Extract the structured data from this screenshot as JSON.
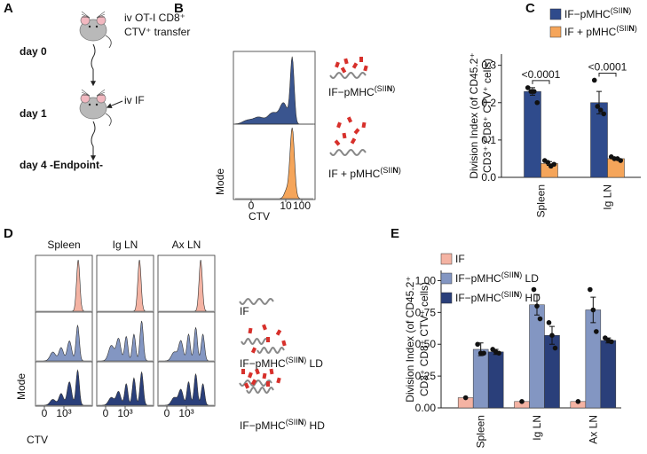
{
  "panel_labels": [
    "A",
    "B",
    "C",
    "D",
    "E"
  ],
  "panel_a": {
    "steps": [
      {
        "day": "day 0",
        "note": [
          "iv OT-I CD8⁺",
          "CTV⁺ transfer"
        ]
      },
      {
        "day": "day 1",
        "note": [
          "iv IF"
        ]
      },
      {
        "day": "day 4 -Endpoint-"
      }
    ]
  },
  "panel_b": {
    "y_label": "Mode",
    "x_label": "CTV",
    "x_ticks": [
      "0",
      "10",
      "100"
    ],
    "rows": [
      "IF−pMHC(SIIN)",
      "IF + pMHC(SIIN)"
    ]
  },
  "panel_d": {
    "columns": [
      "Spleen",
      "Ig LN",
      "Ax LN"
    ],
    "y_label": "Mode",
    "x_label": "CTV",
    "x_ticks": [
      "0",
      "10³"
    ],
    "rows": [
      "IF",
      "IF−pMHC(SIIN) LD",
      "IF−pMHC(SIIN) HD"
    ]
  },
  "chart_data": [
    {
      "type": "bar",
      "y_label": [
        "Division Index (of CD45.2⁺",
        "CD3⁺ CD8⁺ CTV⁺ cells)"
      ],
      "categories": [
        "Spleen",
        "Ig LN"
      ],
      "series": [
        {
          "name": "IF−pMHC(SIIN)",
          "color": "#2f4b8c",
          "values": [
            0.23,
            0.2
          ],
          "errors": [
            0.01,
            0.03
          ],
          "points": [
            [
              0.24,
              0.23,
              0.23,
              0.2
            ],
            [
              0.26,
              0.19,
              0.18,
              0.17
            ]
          ]
        },
        {
          "name": "IF + pMHC(SIIN)",
          "color": "#f5a55a",
          "values": [
            0.037,
            0.05
          ],
          "errors": [
            0.005,
            0.003
          ],
          "points": [
            [
              0.045,
              0.04,
              0.03,
              0.035
            ],
            [
              0.055,
              0.05,
              0.05,
              0.045
            ]
          ]
        }
      ],
      "annotations": [
        "<0.0001",
        "<0.0001"
      ],
      "ylim": [
        0,
        0.33
      ],
      "yticks": [
        {
          "value": 0,
          "label": "0.0"
        },
        0.1,
        0.2,
        0.3
      ]
    },
    {
      "type": "bar",
      "y_label": [
        "Division Index (of CD45.2⁺",
        "CD3⁺ CD8⁺ CTV⁺ cells)"
      ],
      "categories": [
        "Spleen",
        "Ig LN",
        "Ax LN"
      ],
      "series": [
        {
          "name": "IF",
          "color": "#f4b3a3",
          "values": [
            0.08,
            0.05,
            0.05
          ],
          "points": [
            [
              0.08
            ],
            [
              0.05
            ],
            [
              0.05
            ]
          ]
        },
        {
          "name": "IF−pMHC(SIIN) LD",
          "color": "#8396c2",
          "values": [
            0.46,
            0.81,
            0.77
          ],
          "errors": [
            0.05,
            0.08,
            0.1
          ],
          "points": [
            [
              0.5,
              0.43,
              0.43
            ],
            [
              0.93,
              0.8,
              0.7
            ],
            [
              0.93,
              0.77,
              0.6
            ]
          ]
        },
        {
          "name": "IF−pMHC(SIIN) HD",
          "color": "#2a3f7a",
          "values": [
            0.44,
            0.57,
            0.53
          ],
          "errors": [
            0.02,
            0.07,
            0.02
          ],
          "points": [
            [
              0.46,
              0.44,
              0.43
            ],
            [
              0.67,
              0.57,
              0.47
            ],
            [
              0.55,
              0.53,
              0.52
            ]
          ]
        }
      ],
      "ylim": [
        0,
        1.08
      ],
      "yticks": [
        {
          "value": 0,
          "label": "0.00"
        },
        0.25,
        {
          "value": 0.5,
          "label": "0.50"
        },
        0.75,
        {
          "value": 1,
          "label": "1.00"
        }
      ]
    }
  ]
}
